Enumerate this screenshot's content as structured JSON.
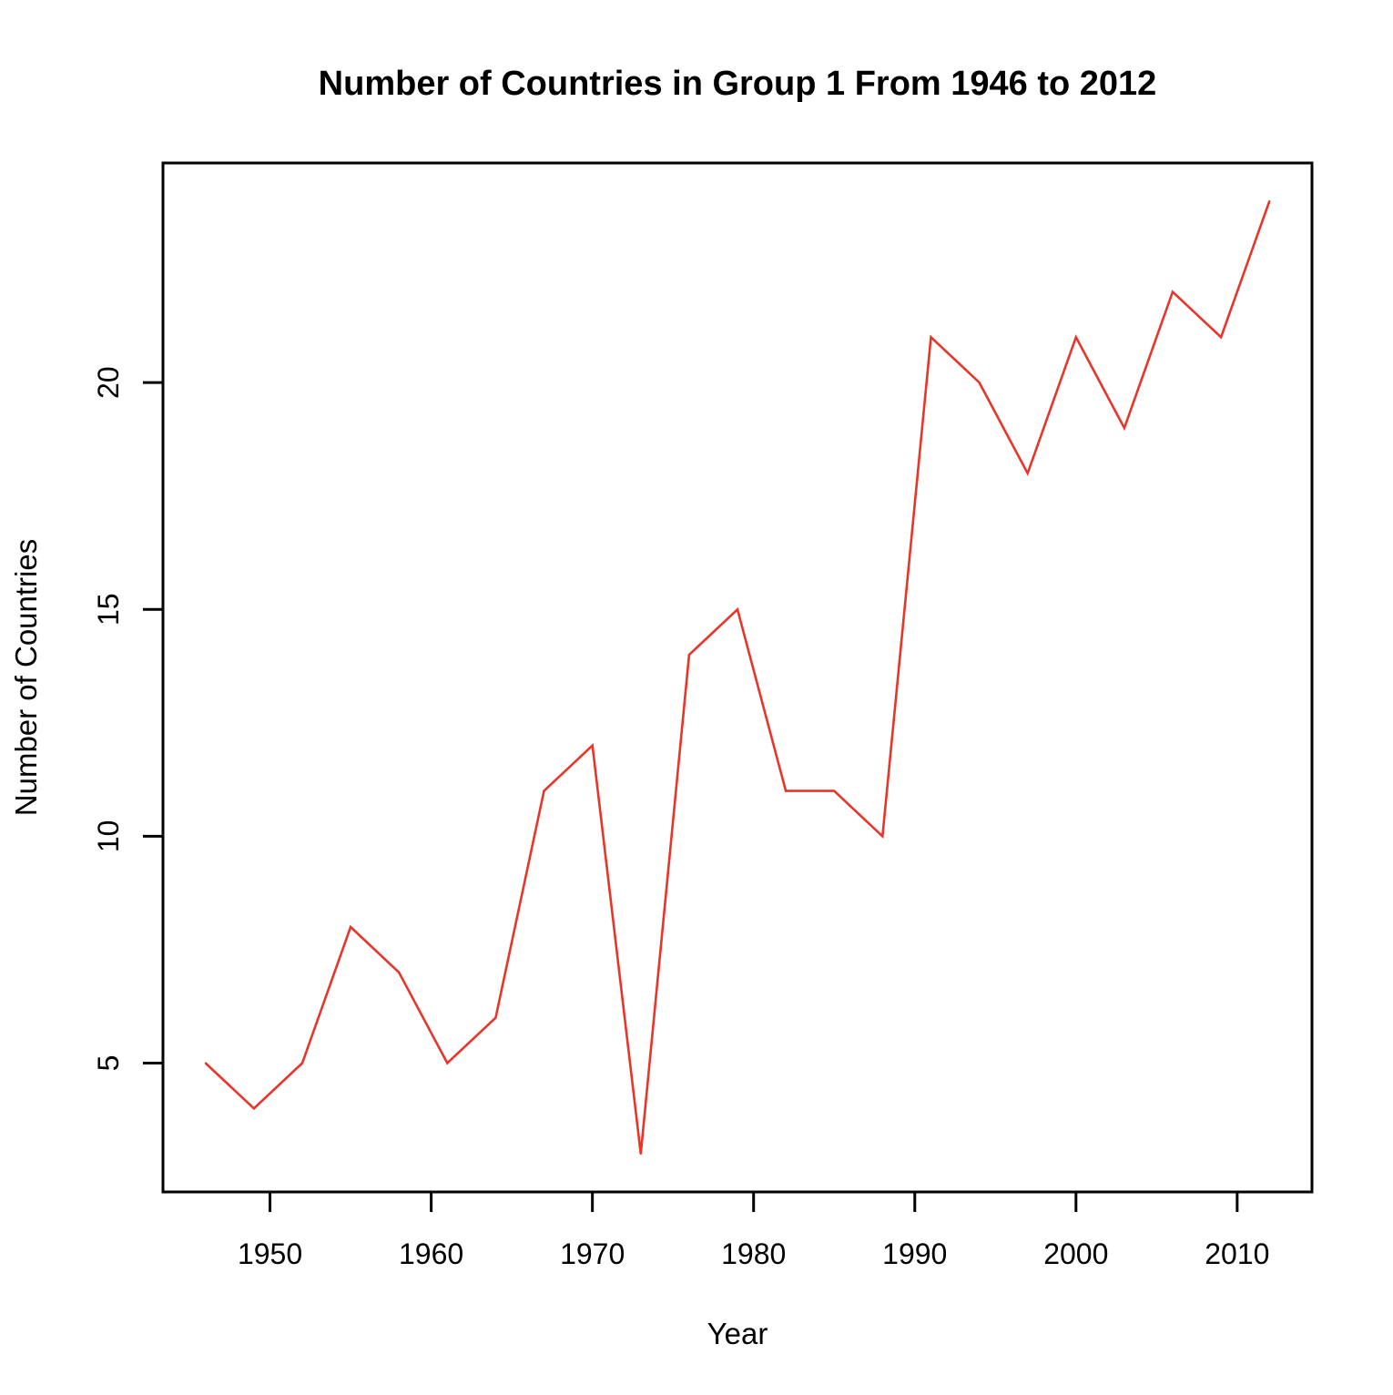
{
  "chart_data": {
    "type": "line",
    "title": "Number of Countries in Group 1 From 1946 to 2012",
    "xlabel": "Year",
    "ylabel": "Number of Countries",
    "x": [
      1946,
      1949,
      1952,
      1955,
      1958,
      1961,
      1964,
      1967,
      1970,
      1973,
      1976,
      1979,
      1982,
      1985,
      1988,
      1991,
      1994,
      1997,
      2000,
      2003,
      2006,
      2009,
      2012
    ],
    "series": [
      {
        "values": [
          5,
          4,
          5,
          8,
          7,
          5,
          6,
          11,
          12,
          3,
          14,
          15,
          11,
          11,
          10,
          21,
          20,
          18,
          21,
          19,
          22,
          21,
          24
        ],
        "color": "#e8352a"
      }
    ],
    "xlim": [
      1943.36,
      2014.64
    ],
    "ylim": [
      2.16,
      24.84
    ],
    "xticks": [
      "1950",
      "1960",
      "1970",
      "1980",
      "1990",
      "2000",
      "2010"
    ],
    "yticks": [
      "5",
      "10",
      "15",
      "20"
    ],
    "grid": false,
    "legend": "none"
  }
}
